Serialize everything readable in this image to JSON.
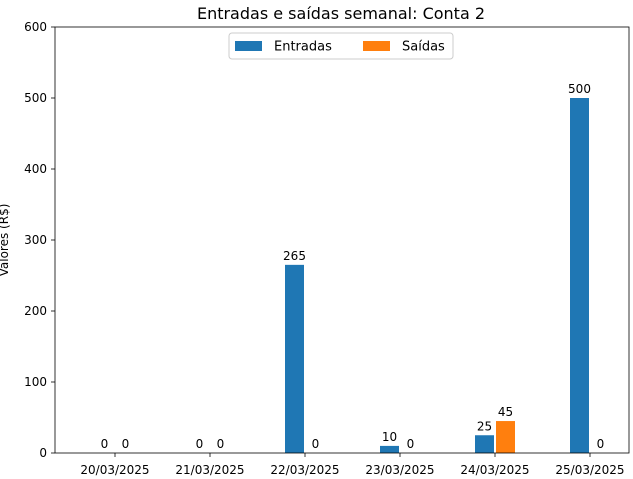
{
  "chart_data": {
    "type": "bar",
    "title": "Entradas e saídas semanal: Conta 2",
    "xlabel": "",
    "ylabel": "Valores (R$)",
    "ylim": [
      0,
      600
    ],
    "yticks": [
      0,
      100,
      200,
      300,
      400,
      500,
      600
    ],
    "categories": [
      "20/03/2025",
      "21/03/2025",
      "22/03/2025",
      "23/03/2025",
      "24/03/2025",
      "25/03/2025"
    ],
    "series": [
      {
        "name": "Entradas",
        "color": "#1f77b4",
        "values": [
          0,
          0,
          265,
          10,
          25,
          500
        ]
      },
      {
        "name": "Saídas",
        "color": "#ff7f0e",
        "values": [
          0,
          0,
          0,
          0,
          45,
          0
        ]
      }
    ],
    "data_labels": true,
    "legend": "top-center",
    "grid": false
  }
}
